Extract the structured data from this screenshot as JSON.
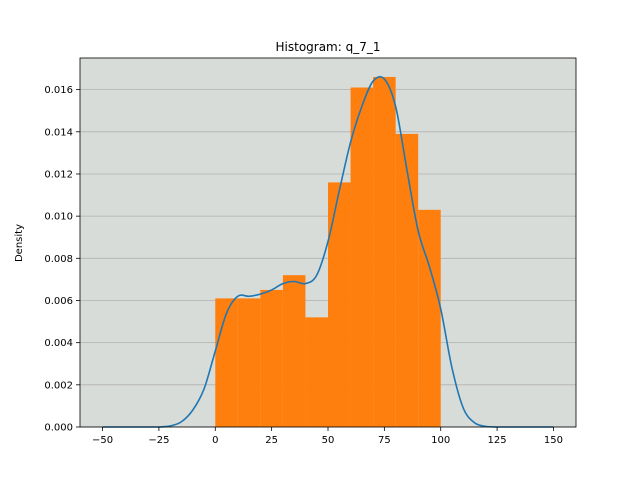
{
  "chart_data": {
    "type": "bar",
    "title": "Histogram: q_7_1",
    "xlabel": "",
    "ylabel": "Density",
    "xlim": [
      -60,
      160
    ],
    "ylim": [
      0,
      0.0175
    ],
    "xticks": [
      -50,
      -25,
      0,
      25,
      50,
      75,
      100,
      125,
      150
    ],
    "xtick_labels": [
      "−50",
      "−25",
      "0",
      "25",
      "50",
      "75",
      "100",
      "125",
      "150"
    ],
    "yticks": [
      0.0,
      0.002,
      0.004,
      0.006,
      0.008,
      0.01,
      0.012,
      0.014,
      0.016
    ],
    "ytick_labels": [
      "0.000",
      "0.002",
      "0.004",
      "0.006",
      "0.008",
      "0.010",
      "0.012",
      "0.014",
      "0.016"
    ],
    "grid": "horizontal",
    "bins": [
      {
        "x0": 0,
        "x1": 10,
        "density": 0.0061
      },
      {
        "x0": 10,
        "x1": 20,
        "density": 0.0061
      },
      {
        "x0": 20,
        "x1": 30,
        "density": 0.0065
      },
      {
        "x0": 30,
        "x1": 40,
        "density": 0.0072
      },
      {
        "x0": 40,
        "x1": 50,
        "density": 0.0052
      },
      {
        "x0": 50,
        "x1": 60,
        "density": 0.0116
      },
      {
        "x0": 60,
        "x1": 70,
        "density": 0.0161
      },
      {
        "x0": 70,
        "x1": 80,
        "density": 0.0166
      },
      {
        "x0": 80,
        "x1": 90,
        "density": 0.0139
      },
      {
        "x0": 90,
        "x1": 100,
        "density": 0.0103
      }
    ],
    "kde": {
      "x": [
        -50,
        -40,
        -30,
        -25,
        -20,
        -15,
        -10,
        -5,
        0,
        5,
        10,
        15,
        20,
        25,
        30,
        35,
        40,
        45,
        50,
        55,
        60,
        65,
        70,
        75,
        80,
        85,
        90,
        95,
        100,
        105,
        110,
        115,
        120,
        125,
        130,
        140,
        150
      ],
      "y": [
        0.0,
        0.0,
        0.0,
        0.0,
        5e-05,
        0.00025,
        0.0008,
        0.0018,
        0.0036,
        0.0054,
        0.0062,
        0.0062,
        0.0063,
        0.0065,
        0.0068,
        0.0069,
        0.0068,
        0.0072,
        0.0088,
        0.0112,
        0.0135,
        0.0152,
        0.0164,
        0.0165,
        0.0152,
        0.0122,
        0.0093,
        0.0076,
        0.0056,
        0.0028,
        0.0009,
        0.0002,
        3e-05,
        0.0,
        0.0,
        0.0,
        0.0
      ]
    },
    "colors": {
      "bars": "#ff7f0e",
      "kde_line": "#1f77b4",
      "plot_background": "#d8dcd8",
      "grid": "#b0b0b0"
    }
  }
}
